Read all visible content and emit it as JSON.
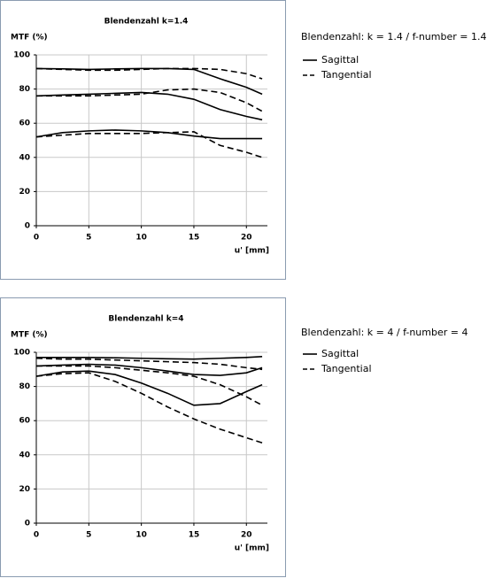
{
  "chart_data": [
    {
      "type": "line",
      "title": "Blendenzahl k=1.4",
      "ylabel": "MTF (%)",
      "xlabel": "u' [mm]",
      "caption": "Blendenzahl: k = 1.4 / f-number = 1.4",
      "x": [
        0,
        2.5,
        5,
        7.5,
        10,
        12.5,
        15,
        17.5,
        20,
        21.5
      ],
      "xlim": [
        0,
        22
      ],
      "xticks": [
        0,
        5,
        10,
        15,
        20
      ],
      "ylim": [
        0,
        100
      ],
      "yticks": [
        0,
        20,
        40,
        60,
        80,
        100
      ],
      "grid": true,
      "series": [
        {
          "name": "Sagittal",
          "color": "#000000",
          "dash": false,
          "lines": [
            [
              92,
              91.8,
              91.5,
              91.8,
              92,
              92,
              91.5,
              86,
              81,
              77
            ],
            [
              76,
              76.5,
              77,
              77.5,
              78,
              77,
              74,
              68,
              64,
              62
            ],
            [
              52,
              54.5,
              55.5,
              56,
              55.5,
              54.5,
              52.5,
              51,
              51,
              51
            ]
          ]
        },
        {
          "name": "Tangential",
          "color": "#000000",
          "dash": true,
          "lines": [
            [
              92,
              91.5,
              91,
              91,
              91.5,
              92,
              92,
              91.5,
              89,
              86
            ],
            [
              76,
              76,
              76,
              76.5,
              77,
              79.5,
              80,
              78,
              72,
              67
            ],
            [
              52,
              53,
              54,
              54,
              54,
              54.5,
              55,
              47,
              43,
              40
            ]
          ]
        }
      ]
    },
    {
      "type": "line",
      "title": "Blendenzahl k=4",
      "ylabel": "MTF (%)",
      "xlabel": "u' [mm]",
      "caption": "Blendenzahl: k = 4 / f-number = 4",
      "x": [
        0,
        2.5,
        5,
        7.5,
        10,
        12.5,
        15,
        17.5,
        20,
        21.5
      ],
      "xlim": [
        0,
        22
      ],
      "xticks": [
        0,
        5,
        10,
        15,
        20
      ],
      "ylim": [
        0,
        100
      ],
      "yticks": [
        0,
        20,
        40,
        60,
        80,
        100
      ],
      "grid": true,
      "series": [
        {
          "name": "Sagittal",
          "color": "#000000",
          "dash": false,
          "lines": [
            [
              97,
              97,
              97,
              96.8,
              96.5,
              96.2,
              96,
              96.5,
              97,
              97.5
            ],
            [
              92,
              92.5,
              93,
              92.5,
              91,
              89,
              87,
              86.5,
              88,
              91
            ],
            [
              86,
              88.5,
              89,
              87,
              82,
              76,
              69,
              70,
              77,
              81
            ]
          ]
        },
        {
          "name": "Tangential",
          "color": "#000000",
          "dash": true,
          "lines": [
            [
              96.5,
              96,
              96,
              95.5,
              95,
              94.5,
              94,
              93,
              91,
              90
            ],
            [
              92,
              92,
              92,
              91,
              89.5,
              88,
              86,
              81,
              74,
              69
            ],
            [
              86,
              87.5,
              88,
              83,
              76,
              68,
              61,
              55,
              50,
              47
            ]
          ]
        }
      ]
    }
  ]
}
